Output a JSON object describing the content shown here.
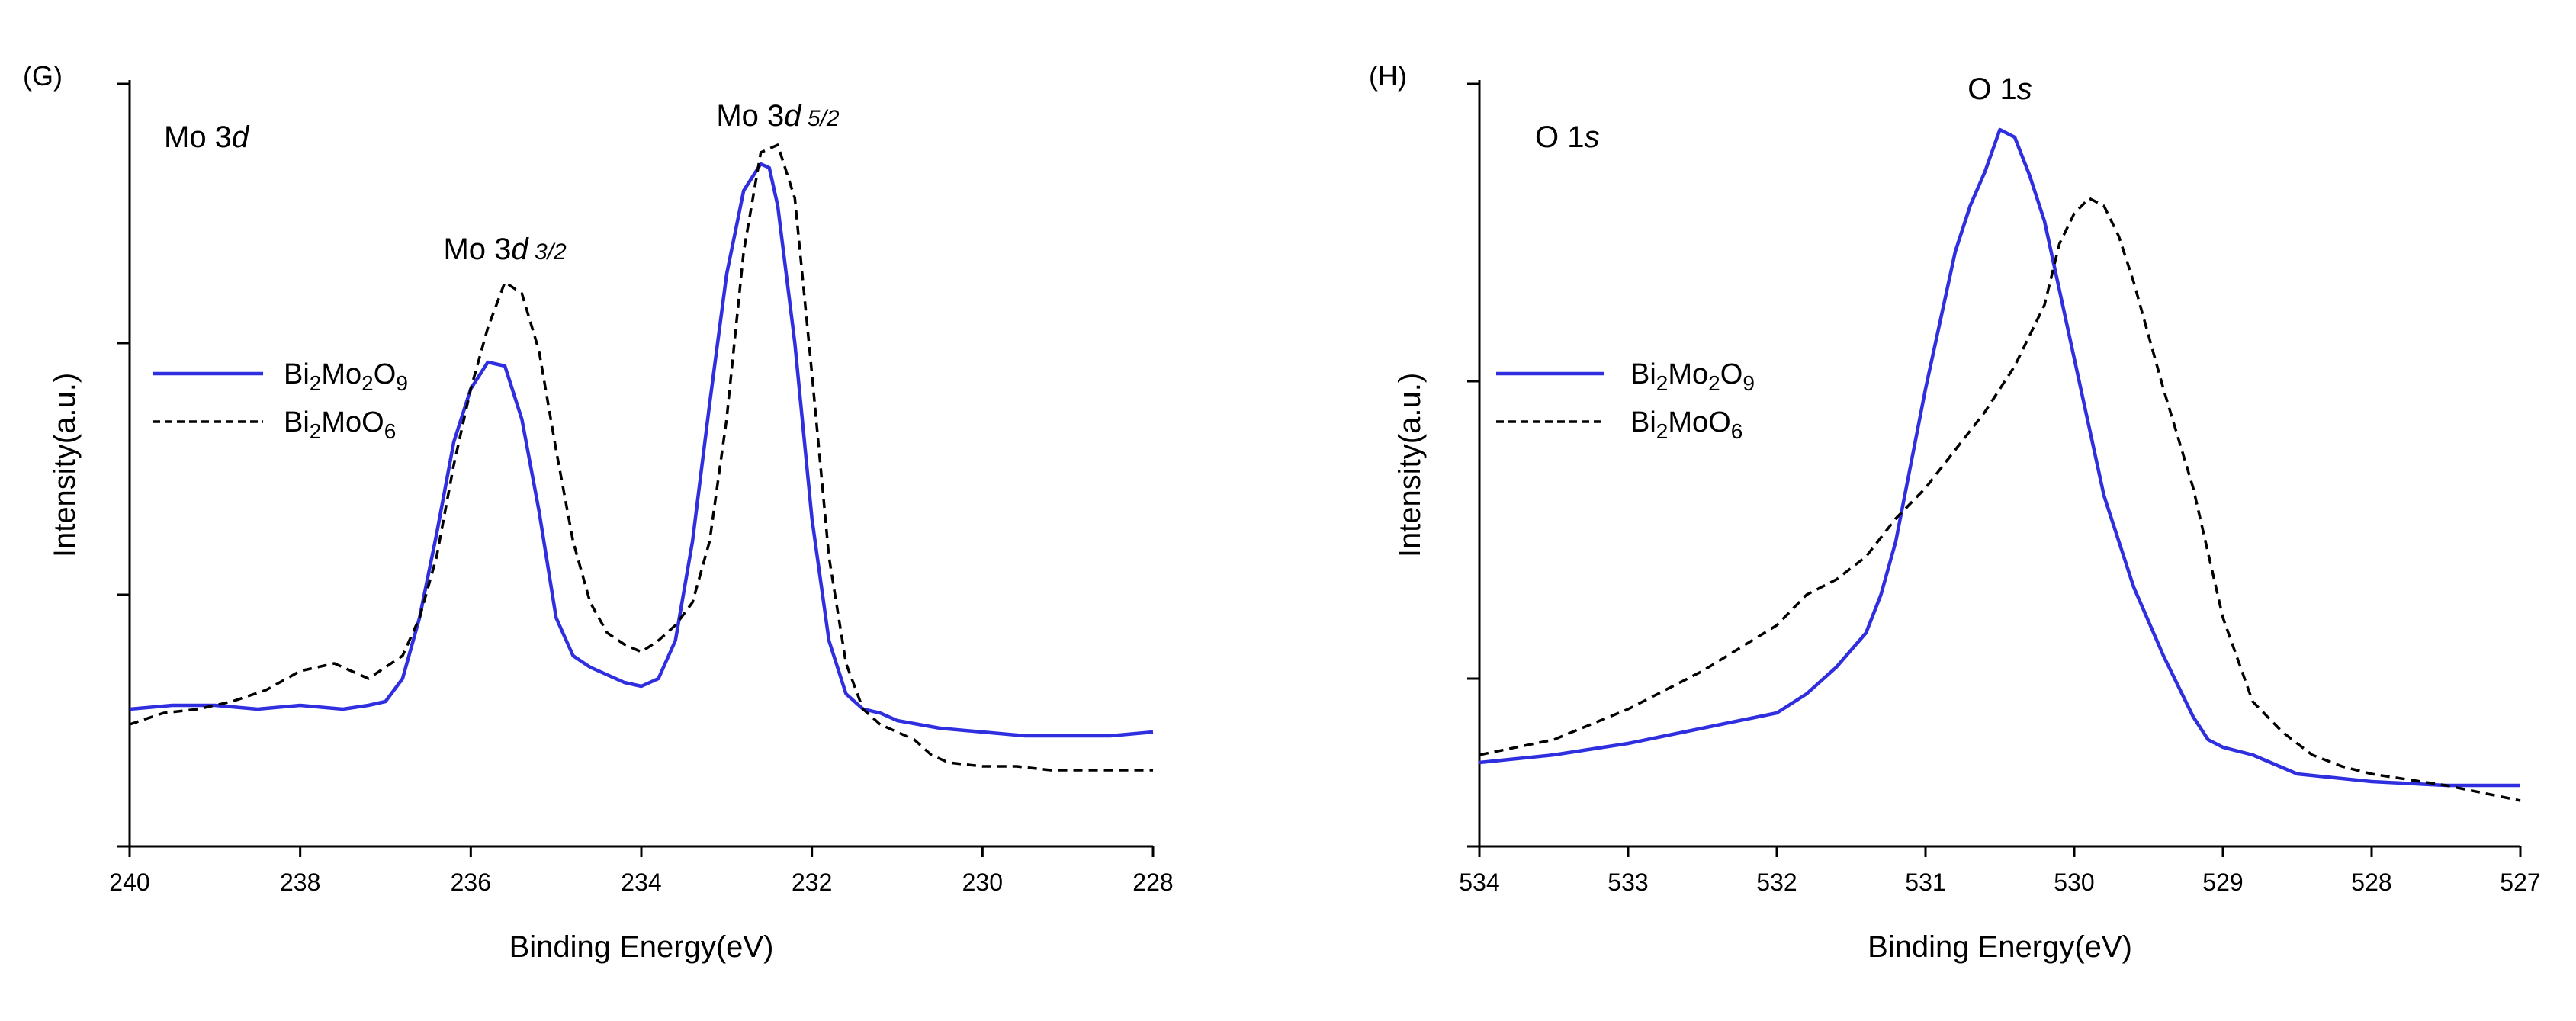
{
  "chart_data": [
    {
      "type": "line",
      "panel_label": "(G)",
      "title_parts": [
        {
          "t": "Mo 3",
          "i": false
        },
        {
          "t": "d",
          "i": true
        }
      ],
      "xlabel": "Binding Energy(eV)",
      "ylabel": "Intensity(a.u.)",
      "xlim": [
        240,
        228
      ],
      "ylim": [
        0,
        100
      ],
      "x_ticks": [
        240,
        238,
        236,
        234,
        232,
        230,
        228
      ],
      "x_tick_labels": [
        "240",
        "238",
        "236",
        "234",
        "232",
        "230",
        "228"
      ],
      "y_ticks": [
        0,
        33,
        66,
        100
      ],
      "annotations": [
        {
          "x": 235.6,
          "y": 77,
          "parts": [
            {
              "t": "Mo 3",
              "i": false,
              "s": false
            },
            {
              "t": "d",
              "i": true,
              "s": false
            },
            {
              "t": " 3/2",
              "i": true,
              "s": true
            }
          ]
        },
        {
          "x": 232.4,
          "y": 94.5,
          "parts": [
            {
              "t": "Mo 3",
              "i": false,
              "s": false
            },
            {
              "t": "d",
              "i": true,
              "s": false
            },
            {
              "t": " 5/2",
              "i": true,
              "s": true
            }
          ]
        }
      ],
      "legend": {
        "position": "center-left"
      },
      "series": [
        {
          "name_parts": [
            {
              "t": "Bi",
              "sub": false
            },
            {
              "t": "2",
              "sub": true
            },
            {
              "t": "Mo",
              "sub": false
            },
            {
              "t": "2",
              "sub": true
            },
            {
              "t": "O",
              "sub": false
            },
            {
              "t": "9",
              "sub": true
            }
          ],
          "color": "#2f2fe0",
          "dash": false,
          "x": [
            240.0,
            239.5,
            239.0,
            238.5,
            238.0,
            237.5,
            237.2,
            237.0,
            236.8,
            236.6,
            236.4,
            236.2,
            236.0,
            235.8,
            235.6,
            235.4,
            235.2,
            235.0,
            234.8,
            234.6,
            234.4,
            234.2,
            234.0,
            233.8,
            233.6,
            233.4,
            233.2,
            233.0,
            232.8,
            232.6,
            232.5,
            232.4,
            232.2,
            232.0,
            231.8,
            231.6,
            231.4,
            231.2,
            231.0,
            230.5,
            230.0,
            229.5,
            229.0,
            228.5,
            228.0
          ],
          "y": [
            18,
            18.5,
            18.5,
            18,
            18.5,
            18,
            18.5,
            19,
            22,
            30,
            41,
            53,
            60,
            63.5,
            63,
            56,
            44,
            30,
            25,
            23.5,
            22.5,
            21.5,
            21,
            22,
            27,
            40,
            58,
            75,
            86,
            89.5,
            89,
            84,
            66,
            43,
            27,
            20,
            18,
            17.5,
            16.5,
            15.5,
            15,
            14.5,
            14.5,
            14.5,
            15
          ]
        },
        {
          "name_parts": [
            {
              "t": "Bi",
              "sub": false
            },
            {
              "t": "2",
              "sub": true
            },
            {
              "t": "MoO",
              "sub": false
            },
            {
              "t": "6",
              "sub": true
            }
          ],
          "color": "#000000",
          "dash": true,
          "x": [
            240.0,
            239.6,
            239.2,
            238.8,
            238.4,
            238.0,
            237.6,
            237.2,
            236.8,
            236.6,
            236.4,
            236.2,
            236.0,
            235.8,
            235.6,
            235.4,
            235.2,
            235.0,
            234.8,
            234.6,
            234.4,
            234.2,
            234.0,
            233.8,
            233.6,
            233.4,
            233.2,
            233.0,
            232.8,
            232.6,
            232.4,
            232.2,
            232.0,
            231.8,
            231.6,
            231.4,
            231.2,
            231.0,
            230.8,
            230.6,
            230.4,
            230.0,
            229.6,
            229.2,
            228.8,
            228.4,
            228.0
          ],
          "y": [
            16,
            17.5,
            18,
            19,
            20.5,
            23,
            24,
            22,
            25,
            30,
            38,
            50,
            60,
            68,
            74,
            72.5,
            65,
            52,
            40,
            32,
            28,
            26.5,
            25.5,
            27,
            29,
            32,
            40,
            56,
            78,
            91,
            92,
            85,
            62,
            38,
            24,
            18,
            16,
            15,
            14,
            12,
            11,
            10.5,
            10.5,
            10,
            10,
            10,
            10
          ]
        }
      ]
    },
    {
      "type": "line",
      "panel_label": "(H)",
      "title_parts": [
        {
          "t": "O 1",
          "i": false
        },
        {
          "t": "s",
          "i": true
        }
      ],
      "xlabel": "Binding Energy(eV)",
      "ylabel": "Intensity(a.u.)",
      "xlim": [
        534,
        527
      ],
      "ylim": [
        0,
        100
      ],
      "x_ticks": [
        534,
        533,
        532,
        531,
        530,
        529,
        528,
        527
      ],
      "x_tick_labels": [
        "534",
        "533",
        "532",
        "531",
        "530",
        "529",
        "528",
        "527"
      ],
      "y_ticks": [
        0,
        22,
        61,
        100
      ],
      "annotations": [
        {
          "x": 530.5,
          "y": 98,
          "parts": [
            {
              "t": "O 1",
              "i": false,
              "s": false
            },
            {
              "t": "s",
              "i": true,
              "s": false
            }
          ]
        }
      ],
      "legend": {
        "position": "center-left"
      },
      "series": [
        {
          "name_parts": [
            {
              "t": "Bi",
              "sub": false
            },
            {
              "t": "2",
              "sub": true
            },
            {
              "t": "Mo",
              "sub": false
            },
            {
              "t": "2",
              "sub": true
            },
            {
              "t": "O",
              "sub": false
            },
            {
              "t": "9",
              "sub": true
            }
          ],
          "color": "#2f2fe0",
          "dash": false,
          "x": [
            534.0,
            533.5,
            533.0,
            532.5,
            532.0,
            531.8,
            531.6,
            531.4,
            531.3,
            531.2,
            531.1,
            531.0,
            530.9,
            530.8,
            530.7,
            530.6,
            530.5,
            530.4,
            530.3,
            530.2,
            530.1,
            530.0,
            529.9,
            529.8,
            529.6,
            529.4,
            529.2,
            529.1,
            529.0,
            528.8,
            528.5,
            528.0,
            527.5,
            527.0
          ],
          "y": [
            11,
            12,
            13.5,
            15.5,
            17.5,
            20,
            23.5,
            28,
            33,
            40,
            50,
            60,
            69,
            78,
            84,
            88.5,
            94,
            93,
            88,
            82,
            73,
            64,
            55,
            46,
            34,
            25,
            17,
            14,
            13,
            12,
            9.5,
            8.5,
            8,
            8
          ]
        },
        {
          "name_parts": [
            {
              "t": "Bi",
              "sub": false
            },
            {
              "t": "2",
              "sub": true
            },
            {
              "t": "MoO",
              "sub": false
            },
            {
              "t": "6",
              "sub": true
            }
          ],
          "color": "#000000",
          "dash": true,
          "x": [
            534.0,
            533.5,
            533.0,
            532.5,
            532.0,
            531.8,
            531.6,
            531.4,
            531.2,
            531.0,
            530.8,
            530.6,
            530.4,
            530.2,
            530.1,
            530.0,
            529.9,
            529.8,
            529.7,
            529.6,
            529.5,
            529.4,
            529.2,
            529.0,
            528.8,
            528.6,
            528.4,
            528.2,
            528.0,
            527.5,
            527.0
          ],
          "y": [
            12,
            14,
            18,
            23,
            29,
            33,
            35,
            38,
            43,
            47,
            52,
            57,
            63,
            71,
            79,
            83,
            85,
            84,
            80,
            74,
            67,
            60,
            47,
            30,
            19,
            15,
            12,
            10.5,
            9.5,
            8,
            6
          ]
        }
      ]
    }
  ]
}
